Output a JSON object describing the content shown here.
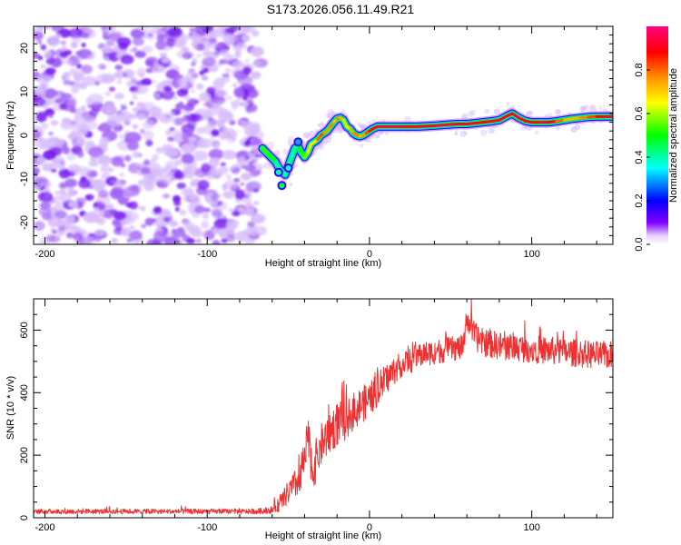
{
  "title": "S173.2026.056.11.49.R21",
  "chart_data": [
    {
      "type": "heatmap",
      "name": "spectrogram",
      "xlabel": "Height of straight line (km)",
      "ylabel": "Frequency (Hz)",
      "xlim": [
        -207,
        150
      ],
      "ylim": [
        -25,
        25
      ],
      "xticks": [
        -200,
        -100,
        0,
        100
      ],
      "xtick_labels": [
        "-200",
        "-100",
        "0",
        "100"
      ],
      "xminor_step": 20,
      "yticks": [
        -20,
        -10,
        0,
        10,
        20
      ],
      "ytick_labels": [
        "-20",
        "-10",
        "0",
        "10",
        "20"
      ],
      "yminor_step": 2,
      "noise_region_x": [
        -207,
        -67
      ],
      "ridge": {
        "x": [
          -66,
          -62,
          -58,
          -55,
          -52,
          -50,
          -48,
          -46,
          -44,
          -42,
          -40,
          -38,
          -36,
          -34,
          -32,
          -30,
          -28,
          -26,
          -24,
          -22,
          -20,
          -18,
          -16,
          -14,
          -12,
          -10,
          -8,
          -6,
          -4,
          -2,
          0,
          2,
          5,
          10,
          20,
          30,
          40,
          50,
          55,
          60,
          65,
          70,
          75,
          80,
          85,
          88,
          92,
          96,
          100,
          105,
          110,
          115,
          120,
          125,
          130,
          135,
          140,
          145,
          150
        ],
        "freq": [
          -3,
          -4.5,
          -6,
          -8,
          -9,
          -7,
          -5,
          -3,
          -2.5,
          -4,
          -5,
          -4,
          -2,
          -1.5,
          -1,
          0,
          0.5,
          1,
          2,
          3,
          3.8,
          4,
          3.5,
          2,
          1.5,
          0.5,
          0,
          -0.2,
          0,
          0.5,
          1,
          1.5,
          2,
          2,
          2,
          2,
          2.2,
          2.5,
          2.6,
          2.6,
          2.8,
          3,
          3.2,
          3.5,
          4.5,
          5,
          4,
          3.3,
          3,
          3,
          3,
          3.2,
          3.5,
          3.8,
          4,
          4.2,
          4.3,
          4.3,
          4.3
        ],
        "amp": [
          0.5,
          0.55,
          0.45,
          0.3,
          0.4,
          0.35,
          0.45,
          0.3,
          0.5,
          0.5,
          0.55,
          0.6,
          0.7,
          0.6,
          0.75,
          0.85,
          0.8,
          0.7,
          0.8,
          0.75,
          0.7,
          0.85,
          0.6,
          0.65,
          0.7,
          0.75,
          0.8,
          0.75,
          0.7,
          0.8,
          0.85,
          0.9,
          0.95,
          0.95,
          0.95,
          0.9,
          0.95,
          0.95,
          0.9,
          0.95,
          0.9,
          0.85,
          0.9,
          0.95,
          0.9,
          0.95,
          0.9,
          0.95,
          0.85,
          0.9,
          0.95,
          0.85,
          0.75,
          0.7,
          0.75,
          0.8,
          0.85,
          0.9,
          0.95
        ],
        "isolated_blobs": [
          {
            "x": -54,
            "freq": -11.5,
            "amp": 0.45
          },
          {
            "x": -56,
            "freq": -8.5,
            "amp": 0.4
          },
          {
            "x": -50,
            "freq": -7.5,
            "amp": 0.35
          },
          {
            "x": -44,
            "freq": -1.5,
            "amp": 0.3
          }
        ]
      },
      "colorbar": {
        "label": "Normalized spectral amplitude",
        "range": [
          0.0,
          1.0
        ],
        "ticks": [
          0.0,
          0.2,
          0.4,
          0.6,
          0.8
        ],
        "tick_labels": [
          "0.0",
          "0.2",
          "0.4",
          "0.6",
          "0.8"
        ],
        "colormap": [
          "#ffffff",
          "#e6d0ff",
          "#8000ff",
          "#0000ff",
          "#00ffff",
          "#00ff00",
          "#ffff00",
          "#ff8000",
          "#ff0000",
          "#ff0080"
        ]
      }
    },
    {
      "type": "line",
      "name": "snr",
      "xlabel": "Height of straight line (km)",
      "ylabel": "SNR (10 * v/v)",
      "xlim": [
        -207,
        150
      ],
      "ylim": [
        0,
        700
      ],
      "xticks": [
        -200,
        -100,
        0,
        100
      ],
      "xtick_labels": [
        "-200",
        "-100",
        "0",
        "100"
      ],
      "xminor_step": 20,
      "yticks": [
        0,
        200,
        400,
        600
      ],
      "ytick_labels": [
        "0",
        "200",
        "400",
        "600"
      ],
      "yminor_step": 50,
      "color": "#f03030",
      "series": [
        {
          "name": "SNR",
          "envelope_x": [
            -207,
            -150,
            -100,
            -70,
            -60,
            -55,
            -50,
            -45,
            -40,
            -38,
            -35,
            -30,
            -25,
            -20,
            -15,
            -10,
            -5,
            0,
            5,
            10,
            15,
            20,
            25,
            30,
            40,
            50,
            58,
            60,
            65,
            70,
            80,
            90,
            100,
            110,
            120,
            130,
            140,
            150
          ],
          "envelope_mean": [
            20,
            20,
            20,
            20,
            25,
            45,
            80,
            110,
            170,
            260,
            150,
            230,
            270,
            300,
            310,
            340,
            360,
            380,
            410,
            440,
            470,
            490,
            500,
            520,
            530,
            540,
            545,
            640,
            580,
            560,
            550,
            545,
            540,
            535,
            530,
            525,
            520,
            520
          ],
          "noise_amplitude": [
            8,
            8,
            8,
            8,
            12,
            25,
            40,
            50,
            60,
            70,
            70,
            70,
            70,
            70,
            65,
            60,
            60,
            55,
            55,
            50,
            45,
            40,
            40,
            40,
            40,
            40,
            40,
            40,
            45,
            45,
            45,
            45,
            45,
            45,
            45,
            45,
            45,
            45
          ]
        }
      ]
    }
  ]
}
